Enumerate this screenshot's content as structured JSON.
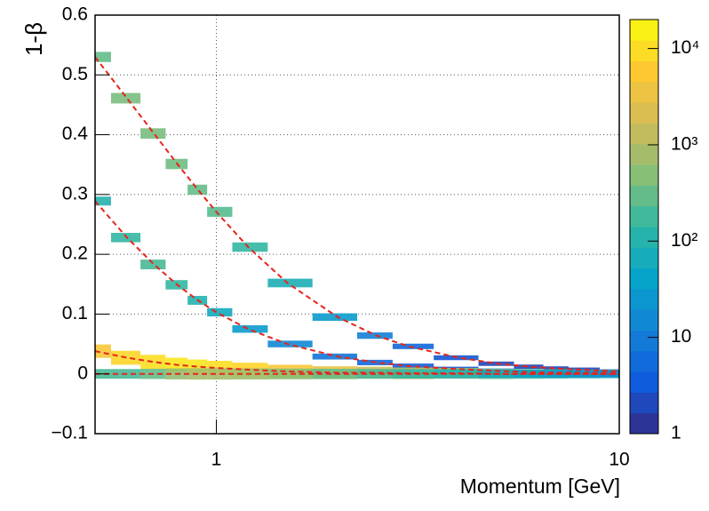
{
  "chart_data": {
    "type": "heatmap",
    "x_label": "Momentum [GeV]",
    "y_label": "1-β",
    "xscale": "log",
    "xlim": [
      0.5,
      10
    ],
    "xticks": [
      1,
      10
    ],
    "ylim": [
      -0.1,
      0.6
    ],
    "yticks": [
      {
        "value": -0.1,
        "label": "−0.1"
      },
      0,
      0.1,
      0.2,
      0.3,
      0.4,
      0.5,
      0.6
    ],
    "zscale": "log",
    "zlim": [
      1,
      20000
    ],
    "zticks": [
      1,
      10,
      {
        "value": 100,
        "label": "10²"
      },
      {
        "value": 1000,
        "label": "10³"
      },
      {
        "value": 10000,
        "label": "10⁴"
      }
    ],
    "grid": true,
    "line_color": "#e3261d",
    "series": [
      {
        "x": [
          0.5,
          0.6,
          0.7,
          0.8,
          0.9,
          1,
          1.2,
          1.5,
          2,
          2.5,
          3,
          4,
          5,
          6,
          7,
          8,
          10
        ],
        "values": [
          0.53,
          0.461,
          0.402,
          0.351,
          0.308,
          0.271,
          0.212,
          0.152,
          0.095,
          0.064,
          0.046,
          0.027,
          0.017,
          0.012,
          0.009,
          0.007,
          0.004
        ],
        "counts": [
          300,
          400,
          400,
          350,
          300,
          250,
          150,
          80,
          30,
          12,
          5,
          3,
          2,
          2,
          2,
          2,
          2
        ]
      },
      {
        "x": [
          0.5,
          0.6,
          0.7,
          0.8,
          0.9,
          1,
          1.2,
          1.5,
          2,
          2.5,
          3,
          4,
          5,
          6,
          7,
          8,
          10
        ],
        "values": [
          0.289,
          0.228,
          0.183,
          0.149,
          0.123,
          0.103,
          0.075,
          0.05,
          0.029,
          0.019,
          0.013,
          0.008,
          0.005,
          0.003,
          0.002,
          0.002,
          0.001
        ],
        "counts": [
          100,
          150,
          200,
          150,
          100,
          60,
          30,
          15,
          8,
          5,
          4,
          3,
          3,
          3,
          3,
          3,
          3
        ]
      },
      {
        "x": [
          0.5,
          0.6,
          0.7,
          0.8,
          0.9,
          1,
          1.2,
          1.5,
          2,
          2.5,
          3,
          4,
          5,
          6,
          7,
          8,
          10
        ],
        "values": [
          0.038,
          0.027,
          0.02,
          0.015,
          0.012,
          0.01,
          0.007,
          0.004,
          0.002,
          0.002,
          0.001,
          0.001,
          0,
          0,
          0,
          0,
          0
        ],
        "counts": [
          5000,
          8000,
          10000,
          12000,
          12000,
          10000,
          8000,
          5000,
          3000,
          1500,
          1000,
          500,
          300,
          200,
          150,
          100,
          80
        ]
      },
      {
        "x": [
          0.5,
          0.6,
          0.7,
          0.8,
          0.9,
          1,
          1.2,
          1.5,
          2,
          2.5,
          3,
          4,
          5,
          6,
          7,
          8,
          10
        ],
        "values": [
          0,
          0,
          0,
          0,
          0,
          0,
          0,
          0,
          0,
          0,
          0,
          0,
          0,
          0,
          0,
          0,
          0
        ],
        "counts": [
          200,
          200,
          300,
          600,
          800,
          800,
          700,
          500,
          300,
          200,
          150,
          100,
          60,
          40,
          30,
          20,
          15
        ]
      }
    ]
  }
}
